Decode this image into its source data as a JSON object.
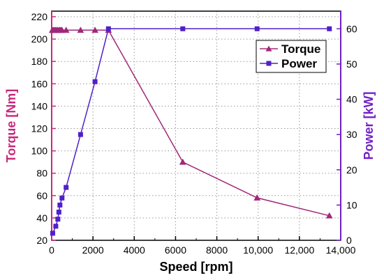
{
  "chart_data": {
    "type": "line",
    "xlabel": "Speed [rpm]",
    "ylabel_left": "Torque [Nm]",
    "ylabel_right": "Power [kW]",
    "xlim": [
      0,
      14000
    ],
    "ylim_left": [
      20,
      225
    ],
    "ylim_right": [
      0,
      65
    ],
    "x_ticks": [
      0,
      2000,
      4000,
      6000,
      8000,
      10000,
      12000,
      14000
    ],
    "x_tick_labels": [
      "0",
      "2000",
      "4000",
      "6000",
      "8000",
      "10,000",
      "12,000",
      "14,000"
    ],
    "y_left_ticks": [
      20,
      40,
      60,
      80,
      100,
      120,
      140,
      160,
      180,
      200,
      220
    ],
    "y_left_tick_labels": [
      "20",
      "40",
      "60",
      "80",
      "100",
      "120",
      "140",
      "160",
      "180",
      "200",
      "220"
    ],
    "y_right_ticks": [
      0,
      10,
      20,
      30,
      40,
      50,
      60
    ],
    "y_right_tick_labels": [
      "0",
      "10",
      "20",
      "30",
      "40",
      "50",
      "60"
    ],
    "grid": true,
    "legend_position": "top-right",
    "series": [
      {
        "name": "Torque",
        "axis": "left",
        "marker": "triangle",
        "color": "#A0287A",
        "x": [
          30,
          80,
          130,
          180,
          230,
          280,
          350,
          400,
          450,
          500,
          700,
          1400,
          2100,
          2750,
          6350,
          9950,
          13450
        ],
        "y": [
          208,
          208,
          208,
          208,
          208,
          208,
          208,
          208,
          208,
          208,
          208,
          208,
          208,
          208,
          90,
          58,
          42
        ]
      },
      {
        "name": "Power",
        "axis": "right",
        "marker": "square",
        "color": "#5020C8",
        "x": [
          50,
          200,
          300,
          350,
          400,
          500,
          700,
          1400,
          2100,
          2750,
          6350,
          9950,
          13450
        ],
        "y": [
          2,
          4,
          6,
          8,
          10,
          12,
          15,
          30,
          45,
          60,
          60,
          60,
          60
        ]
      }
    ],
    "colors": {
      "left_axis": "#C8287A",
      "right_axis": "#7020C8",
      "grid": "#9a9a9a"
    }
  }
}
